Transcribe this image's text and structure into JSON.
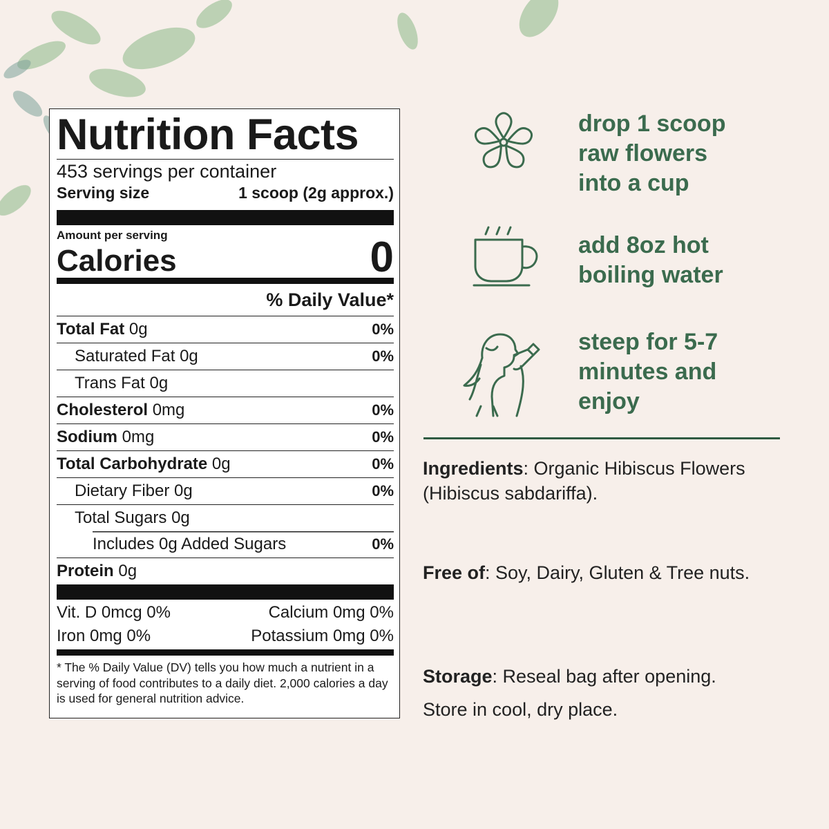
{
  "nutrition": {
    "title": "Nutrition Facts",
    "servings": "453 servings per container",
    "serving_size_label": "Serving size",
    "serving_size_value": "1 scoop (2g approx.)",
    "amount_per_serving": "Amount per serving",
    "calories_label": "Calories",
    "calories_value": "0",
    "dv_header": "% Daily Value*",
    "rows": [
      {
        "bold": "Total Fat",
        "rest": " 0g",
        "pct": "0%"
      },
      {
        "bold": "",
        "rest": "Saturated Fat 0g",
        "pct": "0%"
      },
      {
        "bold": "",
        "rest": "Trans Fat 0g",
        "pct": ""
      },
      {
        "bold": "Cholesterol",
        "rest": " 0mg",
        "pct": "0%"
      },
      {
        "bold": "Sodium",
        "rest": " 0mg",
        "pct": "0%"
      },
      {
        "bold": "Total Carbohydrate",
        "rest": " 0g",
        "pct": "0%"
      },
      {
        "bold": "",
        "rest": "Dietary Fiber 0g",
        "pct": "0%"
      },
      {
        "bold": "",
        "rest": "Total Sugars 0g",
        "pct": ""
      },
      {
        "bold": "",
        "rest": "Includes 0g Added Sugars",
        "pct": "0%"
      },
      {
        "bold": "Protein",
        "rest": " 0g",
        "pct": ""
      }
    ],
    "vit_d": "Vit. D 0mcg 0%",
    "calcium": "Calcium 0mg 0%",
    "iron": "Iron 0mg 0%",
    "potassium": "Potassium 0mg 0%",
    "footnote": "* The % Daily Value (DV) tells you how much a nutrient in a serving of food contributes to a daily diet. 2,000 calories a day is used for general nutrition advice."
  },
  "steps": [
    {
      "icon": "hibiscus-flower-icon",
      "text": "drop 1 scoop\nraw flowers\ninto a cup"
    },
    {
      "icon": "hot-cup-icon",
      "text": "add 8oz hot\nboiling water"
    },
    {
      "icon": "woman-drinking-icon",
      "text": "steep for 5-7\nminutes and\nenjoy"
    }
  ],
  "info": {
    "ingredients_label": "Ingredients",
    "ingredients_text": ": Organic Hibiscus Flowers (Hibiscus sabdariffa).",
    "free_of_label": "Free of",
    "free_of_text": ": Soy, Dairy, Gluten & Tree nuts.",
    "storage_label": "Storage",
    "storage_text": ": Reseal bag after opening.",
    "storage_text_2": "Store in cool, dry place."
  },
  "colors": {
    "background": "#f7efea",
    "accent_green": "#3b6b4e",
    "leaf_green": "#9fbf9a"
  }
}
